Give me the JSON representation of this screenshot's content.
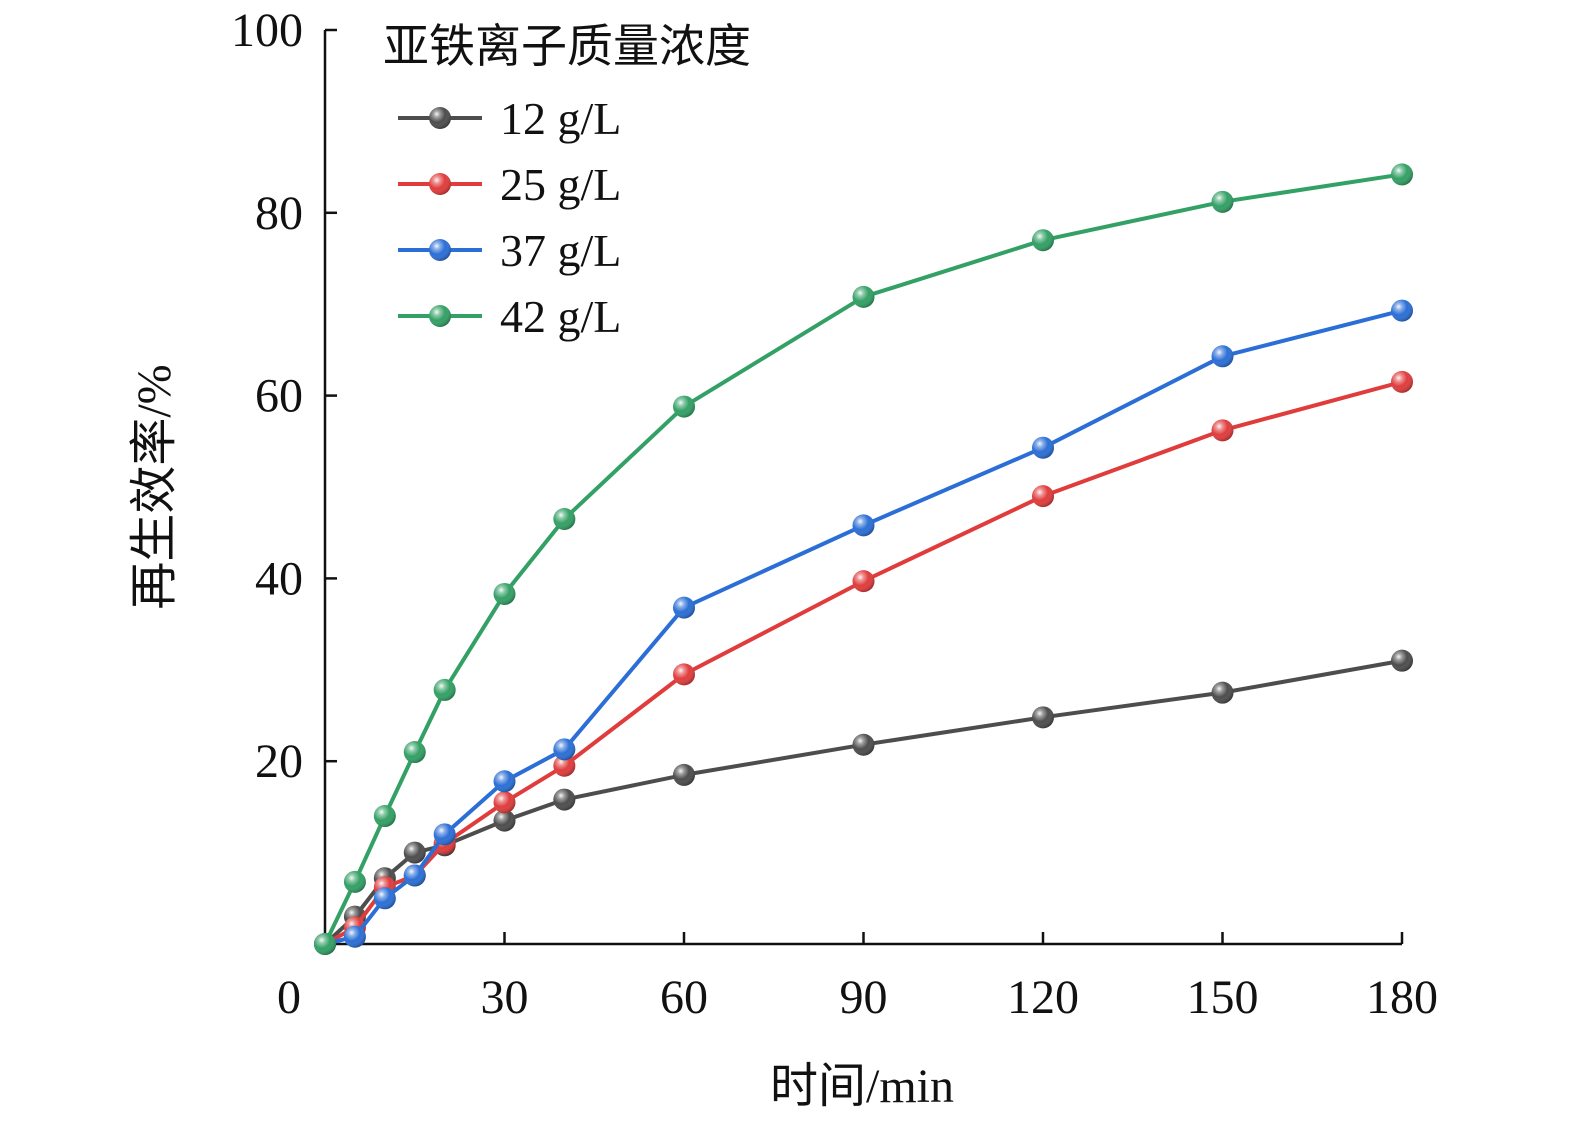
{
  "chart_data": {
    "type": "line",
    "title": "",
    "xlabel": "时间/min",
    "ylabel": "再生效率/%",
    "xlim": [
      0,
      180
    ],
    "ylim": [
      0,
      100
    ],
    "x_ticks": [
      0,
      30,
      60,
      90,
      120,
      150,
      180
    ],
    "y_ticks": [
      20,
      40,
      60,
      80,
      100
    ],
    "grid": false,
    "legend": {
      "title": "亚铁离子质量浓度",
      "placement": "top-left"
    },
    "series": [
      {
        "name": "12 g/L",
        "color": "#4d4d4d",
        "x": [
          0,
          5,
          10,
          15,
          20,
          30,
          40,
          60,
          90,
          120,
          150,
          180
        ],
        "y": [
          0,
          3.0,
          7.2,
          10.0,
          10.8,
          13.5,
          15.8,
          18.5,
          21.8,
          24.8,
          27.5,
          31.0
        ]
      },
      {
        "name": "25 g/L",
        "color": "#e03c3c",
        "x": [
          0,
          5,
          10,
          15,
          20,
          30,
          40,
          60,
          90,
          120,
          150,
          180
        ],
        "y": [
          0,
          1.8,
          6.2,
          7.5,
          11.0,
          15.5,
          19.5,
          29.5,
          39.7,
          49.0,
          56.2,
          61.5
        ]
      },
      {
        "name": "37 g/L",
        "color": "#2b6fd6",
        "x": [
          0,
          5,
          10,
          15,
          20,
          30,
          40,
          60,
          90,
          120,
          150,
          180
        ],
        "y": [
          0,
          0.8,
          5.0,
          7.5,
          12.0,
          17.8,
          21.3,
          36.8,
          45.8,
          54.3,
          64.3,
          69.3
        ]
      },
      {
        "name": "42 g/L",
        "color": "#33a065",
        "x": [
          0,
          5,
          10,
          15,
          20,
          30,
          40,
          60,
          90,
          120,
          150,
          180
        ],
        "y": [
          0,
          6.8,
          14.0,
          21.0,
          27.8,
          38.3,
          46.5,
          58.8,
          70.8,
          77.0,
          81.2,
          84.2
        ]
      }
    ]
  }
}
